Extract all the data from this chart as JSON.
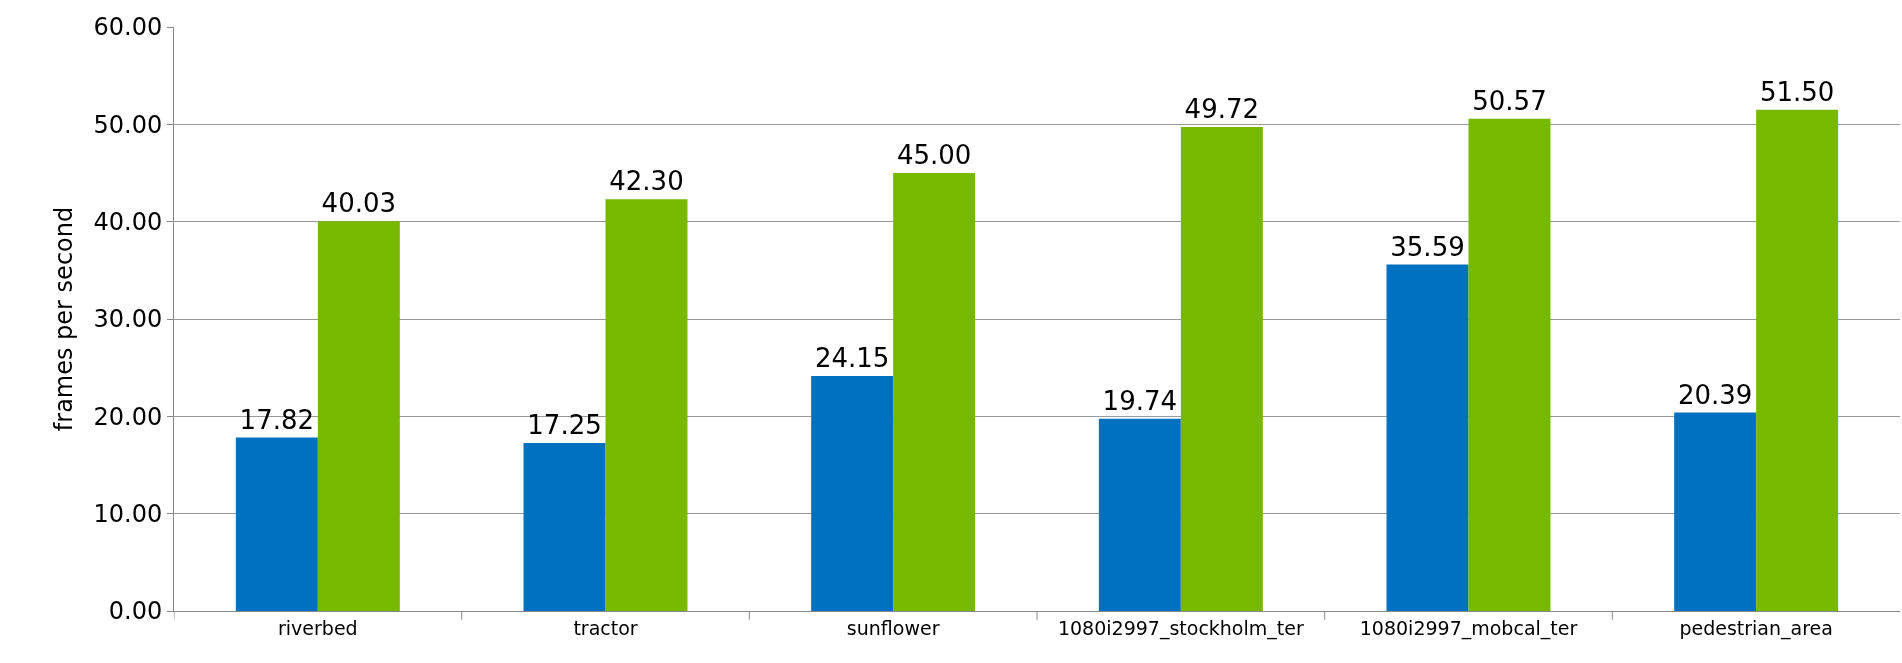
{
  "chart_data": {
    "type": "bar",
    "ylabel": "frames per second",
    "categories": [
      "riverbed",
      "tractor",
      "sunflower",
      "1080i2997_stockholm_ter",
      "1080i2997_mobcal_ter",
      "pedestrian_area"
    ],
    "series": [
      {
        "color": "#0070c0",
        "values": [
          17.82,
          17.25,
          24.15,
          19.74,
          35.59,
          20.39
        ],
        "value_labels": [
          "17.82",
          "17.25",
          "24.15",
          "19.74",
          "35.59",
          "20.39"
        ]
      },
      {
        "color": "#76b900",
        "values": [
          40.03,
          42.3,
          45.0,
          49.72,
          50.57,
          51.5
        ],
        "value_labels": [
          "40.03",
          "42.30",
          "45.00",
          "49.72",
          "50.57",
          "51.50"
        ]
      }
    ],
    "ylim": [
      0,
      60
    ],
    "yticks": [
      {
        "value": 0,
        "label": "0.00"
      },
      {
        "value": 10,
        "label": "10.00"
      },
      {
        "value": 20,
        "label": "20.00"
      },
      {
        "value": 30,
        "label": "30.00"
      },
      {
        "value": 40,
        "label": "40.00"
      },
      {
        "value": 50,
        "label": "50.00"
      },
      {
        "value": 60,
        "label": "60.00"
      }
    ],
    "grid": "y"
  }
}
